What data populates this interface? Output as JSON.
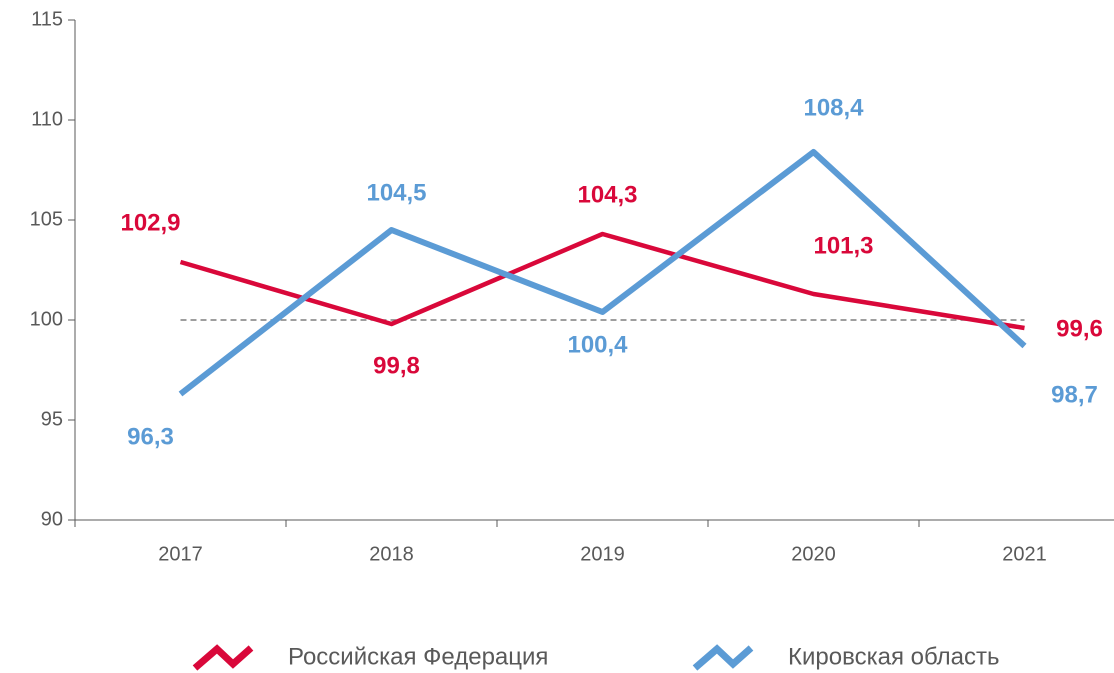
{
  "chart_data": {
    "type": "line",
    "categories": [
      "2017",
      "2018",
      "2019",
      "2020",
      "2021"
    ],
    "series": [
      {
        "name": "Российская Федерация",
        "color": "#d9083a",
        "values": [
          102.9,
          99.8,
          104.3,
          101.3,
          99.6
        ],
        "value_labels": [
          "102,9",
          "99,8",
          "104,3",
          "101,3",
          "99,6"
        ]
      },
      {
        "name": "Кировская область",
        "color": "#5b9bd5",
        "values": [
          96.3,
          104.5,
          100.4,
          108.4,
          98.7
        ],
        "value_labels": [
          "96,3",
          "104,5",
          "100,4",
          "108,4",
          "98,7"
        ]
      }
    ],
    "ylim": [
      90,
      115
    ],
    "yticks": [
      90,
      95,
      100,
      105,
      110,
      115
    ],
    "reference_line": 100,
    "grid": false,
    "legend": "bottom"
  }
}
